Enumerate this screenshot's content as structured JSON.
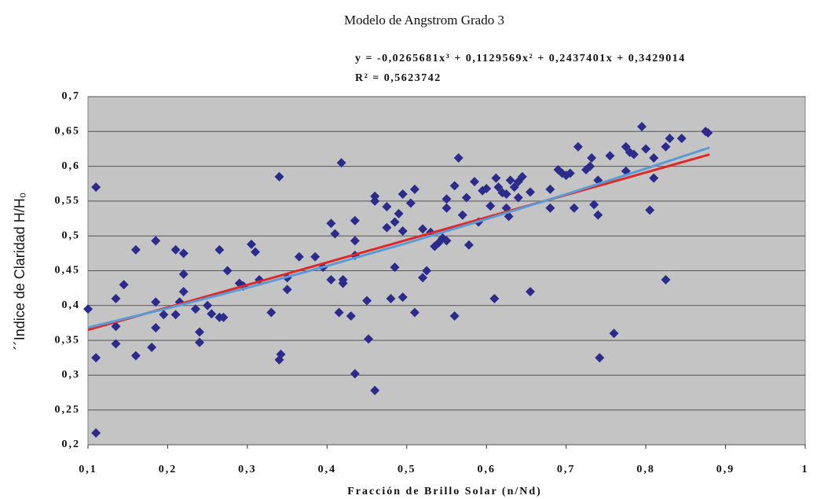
{
  "chart_data": {
    "type": "scatter",
    "title": "Modelo de Angstrom Grado 3",
    "annotations": [
      "y = -0,0265681x³ + 0,1129569x² + 0,2437401x + 0,3429014",
      "R² = 0,5623742"
    ],
    "x_label": "Fracción de Brillo Solar (n/Nd)",
    "y_label": "´´Indice de Claridad H/H₀",
    "xlim": [
      0.1,
      1
    ],
    "ylim": [
      0.2,
      0.7
    ],
    "xticks": [
      {
        "value": 0.1,
        "label": "0,1"
      },
      {
        "value": 0.2,
        "label": "0,2"
      },
      {
        "value": 0.3,
        "label": "0,3"
      },
      {
        "value": 0.4,
        "label": "0,4"
      },
      {
        "value": 0.5,
        "label": "0,5"
      },
      {
        "value": 0.6,
        "label": "0,6"
      },
      {
        "value": 0.7,
        "label": "0,7"
      },
      {
        "value": 0.8,
        "label": "0,8"
      },
      {
        "value": 0.9,
        "label": "0,9"
      },
      1
    ],
    "yticks": [
      {
        "value": 0.2,
        "label": "0,2"
      },
      {
        "value": 0.25,
        "label": "0,25"
      },
      {
        "value": 0.3,
        "label": "0,3"
      },
      {
        "value": 0.35,
        "label": "0,35"
      },
      {
        "value": 0.4,
        "label": "0,4"
      },
      {
        "value": 0.45,
        "label": "0,45"
      },
      {
        "value": 0.5,
        "label": "0,5"
      },
      {
        "value": 0.55,
        "label": "0,55"
      },
      {
        "value": 0.6,
        "label": "0,6"
      },
      {
        "value": 0.65,
        "label": "0,65"
      },
      {
        "value": 0.7,
        "label": "0,7"
      }
    ],
    "grid": true,
    "series": [
      {
        "mode": "markers",
        "color": "#2b2b8c",
        "x": [
          0.1,
          0.11,
          0.11,
          0.11,
          0.135,
          0.135,
          0.135,
          0.145,
          0.16,
          0.16,
          0.18,
          0.185,
          0.185,
          0.185,
          0.195,
          0.21,
          0.21,
          0.215,
          0.22,
          0.22,
          0.22,
          0.235,
          0.24,
          0.24,
          0.25,
          0.255,
          0.265,
          0.265,
          0.27,
          0.275,
          0.29,
          0.295,
          0.305,
          0.31,
          0.315,
          0.33,
          0.34,
          0.34,
          0.342,
          0.35,
          0.35,
          0.365,
          0.385,
          0.395,
          0.405,
          0.405,
          0.41,
          0.415,
          0.418,
          0.42,
          0.42,
          0.43,
          0.435,
          0.435,
          0.435,
          0.435,
          0.45,
          0.452,
          0.46,
          0.46,
          0.46,
          0.475,
          0.475,
          0.48,
          0.485,
          0.485,
          0.49,
          0.495,
          0.495,
          0.495,
          0.505,
          0.51,
          0.51,
          0.52,
          0.52,
          0.525,
          0.53,
          0.535,
          0.54,
          0.545,
          0.55,
          0.55,
          0.55,
          0.56,
          0.56,
          0.565,
          0.57,
          0.575,
          0.578,
          0.585,
          0.59,
          0.595,
          0.6,
          0.605,
          0.61,
          0.612,
          0.615,
          0.62,
          0.625,
          0.625,
          0.628,
          0.63,
          0.635,
          0.64,
          0.64,
          0.645,
          0.655,
          0.655,
          0.68,
          0.68,
          0.69,
          0.695,
          0.7,
          0.705,
          0.71,
          0.715,
          0.725,
          0.73,
          0.732,
          0.735,
          0.74,
          0.74,
          0.742,
          0.755,
          0.76,
          0.775,
          0.775,
          0.78,
          0.785,
          0.795,
          0.8,
          0.805,
          0.81,
          0.81,
          0.825,
          0.825,
          0.83,
          0.845,
          0.875,
          0.878
        ],
        "values": [
          0.395,
          0.57,
          0.325,
          0.217,
          0.37,
          0.41,
          0.345,
          0.43,
          0.48,
          0.328,
          0.34,
          0.493,
          0.405,
          0.368,
          0.387,
          0.48,
          0.387,
          0.405,
          0.475,
          0.445,
          0.42,
          0.395,
          0.362,
          0.347,
          0.4,
          0.388,
          0.48,
          0.383,
          0.383,
          0.45,
          0.432,
          0.428,
          0.488,
          0.477,
          0.437,
          0.39,
          0.585,
          0.322,
          0.33,
          0.44,
          0.423,
          0.47,
          0.47,
          0.455,
          0.518,
          0.437,
          0.503,
          0.39,
          0.605,
          0.437,
          0.432,
          0.385,
          0.522,
          0.493,
          0.472,
          0.302,
          0.407,
          0.352,
          0.557,
          0.55,
          0.278,
          0.542,
          0.512,
          0.41,
          0.52,
          0.455,
          0.532,
          0.56,
          0.507,
          0.412,
          0.547,
          0.567,
          0.39,
          0.51,
          0.44,
          0.45,
          0.505,
          0.485,
          0.49,
          0.497,
          0.553,
          0.54,
          0.493,
          0.572,
          0.385,
          0.612,
          0.53,
          0.555,
          0.487,
          0.578,
          0.52,
          0.565,
          0.568,
          0.543,
          0.41,
          0.583,
          0.57,
          0.562,
          0.56,
          0.54,
          0.528,
          0.58,
          0.57,
          0.578,
          0.555,
          0.585,
          0.563,
          0.42,
          0.567,
          0.54,
          0.595,
          0.59,
          0.587,
          0.59,
          0.54,
          0.628,
          0.595,
          0.6,
          0.612,
          0.545,
          0.58,
          0.53,
          0.325,
          0.615,
          0.36,
          0.628,
          0.593,
          0.62,
          0.617,
          0.657,
          0.625,
          0.537,
          0.612,
          0.583,
          0.628,
          0.437,
          0.64,
          0.64,
          0.65,
          0.648
        ]
      },
      {
        "mode": "line",
        "color": "#e02828",
        "x": [
          0.1,
          0.88
        ],
        "values": [
          0.365,
          0.617
        ]
      },
      {
        "mode": "line",
        "color": "#5b9bd5",
        "x": [
          0.1,
          0.2,
          0.3,
          0.4,
          0.5,
          0.6,
          0.7,
          0.8,
          0.88
        ],
        "values": [
          0.3684,
          0.396,
          0.4255,
          0.4568,
          0.4897,
          0.5241,
          0.5598,
          0.5966,
          0.6268
        ]
      }
    ]
  }
}
